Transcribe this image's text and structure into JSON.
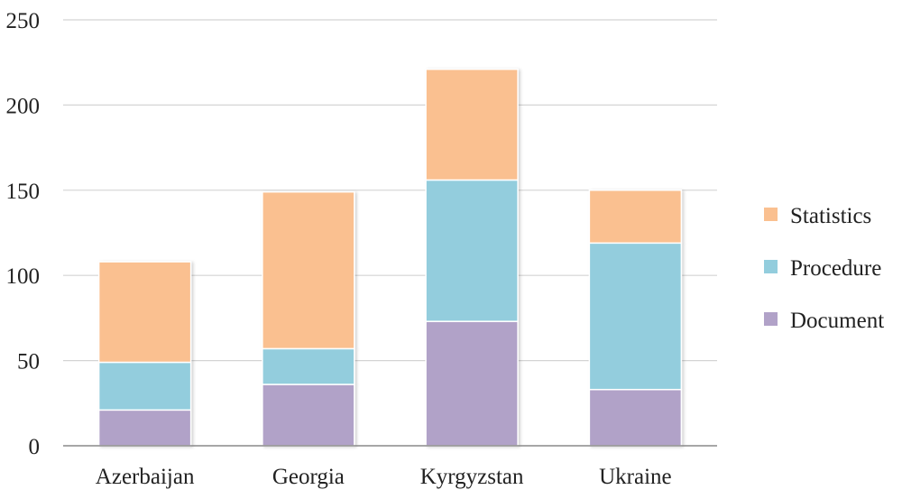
{
  "chart_data": {
    "type": "bar",
    "stacked": true,
    "categories": [
      "Azerbaijan",
      "Georgia",
      "Kyrgyzstan",
      "Ukraine"
    ],
    "series": [
      {
        "name": "Document",
        "values": [
          21,
          36,
          73,
          33
        ],
        "color": "#b1a2c8"
      },
      {
        "name": "Procedure",
        "values": [
          28,
          21,
          83,
          86
        ],
        "color": "#93cddd"
      },
      {
        "name": "Statistics",
        "values": [
          59,
          92,
          65,
          31
        ],
        "color": "#fac090"
      }
    ],
    "yticks": [
      0,
      50,
      100,
      150,
      200,
      250
    ],
    "ylim": [
      0,
      250
    ],
    "grid": true,
    "legend_position": "right",
    "legend_order": [
      "Statistics",
      "Procedure",
      "Document"
    ]
  }
}
